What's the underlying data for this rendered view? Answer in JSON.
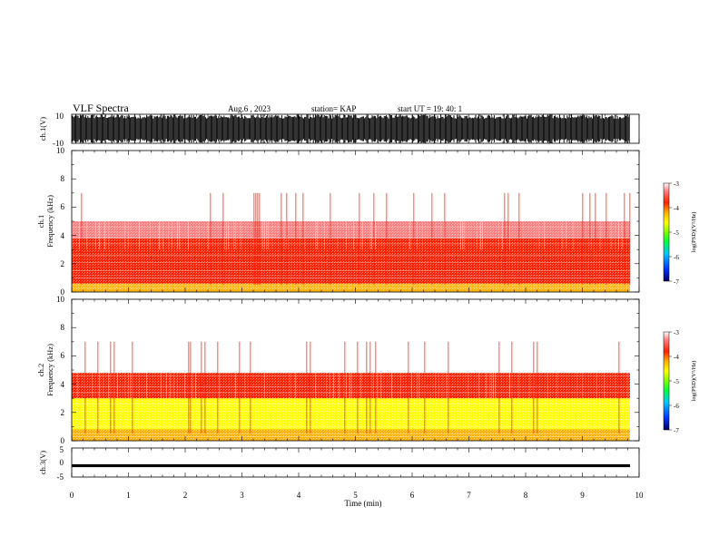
{
  "header": {
    "title": "VLF Spectra",
    "date": "Aug.6 , 2023",
    "station": "station= KAP",
    "start_ut": "start UT = 19: 40: 1"
  },
  "colors": {
    "background": "#ffffff",
    "trace": "#000000",
    "colorbar_stops": [
      "#000060",
      "#0030ff",
      "#00c8ff",
      "#00ff40",
      "#80ff00",
      "#ffff00",
      "#ffb000",
      "#ff2000",
      "#ff8080",
      "#ffffff"
    ]
  },
  "chart_data": [
    {
      "id": "ch1-waveform",
      "type": "line",
      "ylabel": "ch.1(V)",
      "ylim": [
        -10,
        10
      ],
      "yticks": [
        "10",
        "-10"
      ],
      "xlim": [
        0,
        10
      ],
      "description": "dense broadband waveform trace spanning most of the range"
    },
    {
      "id": "ch1-spectrogram",
      "type": "heatmap",
      "channel_label": "ch.1",
      "ylabel": "Frequency (kHz)",
      "ylim": [
        0,
        10
      ],
      "yticks": [
        "0",
        "2",
        "4",
        "6",
        "8",
        "10"
      ],
      "xlim": [
        0,
        10
      ],
      "colorbar": {
        "label": "log(PSD)(V²/Hz)",
        "range": [
          -7,
          -3
        ],
        "ticks": [
          "-3",
          "-4",
          "-5",
          "-6",
          "-7"
        ]
      },
      "bands": [
        {
          "from_khz": 0.0,
          "to_khz": 0.6,
          "level": -4.2
        },
        {
          "from_khz": 0.6,
          "to_khz": 1.2,
          "level": -4.0
        },
        {
          "from_khz": 1.2,
          "to_khz": 3.8,
          "level": -3.9
        },
        {
          "from_khz": 3.8,
          "to_khz": 5.0,
          "level": -3.6
        },
        {
          "from_khz": 5.0,
          "to_khz": 10.0,
          "level": -3.2
        }
      ]
    },
    {
      "id": "ch2-spectrogram",
      "type": "heatmap",
      "channel_label": "ch.2",
      "ylabel": "Frequency (kHz)",
      "ylim": [
        0,
        10
      ],
      "yticks": [
        "0",
        "2",
        "4",
        "6",
        "8",
        "10"
      ],
      "xlim": [
        0,
        10
      ],
      "colorbar": {
        "label": "log(PSD)(V²/Hz)",
        "range": [
          -7,
          -3
        ],
        "ticks": [
          "-3",
          "-4",
          "-5",
          "-6",
          "-7"
        ]
      },
      "bands": [
        {
          "from_khz": 0.0,
          "to_khz": 0.8,
          "level": -4.3
        },
        {
          "from_khz": 0.8,
          "to_khz": 3.0,
          "level": -4.9
        },
        {
          "from_khz": 3.0,
          "to_khz": 4.8,
          "level": -3.9
        },
        {
          "from_khz": 4.8,
          "to_khz": 10.0,
          "level": -3.2
        }
      ]
    },
    {
      "id": "ch3-waveform",
      "type": "line",
      "ylabel": "ch.3(V)",
      "ylim": [
        -5,
        5
      ],
      "yticks": [
        "5",
        "0",
        "-5"
      ],
      "xlim": [
        0,
        10
      ],
      "value_band": [
        -1.6,
        -0.6
      ]
    }
  ],
  "xaxis": {
    "label": "Time (min)",
    "ticks": [
      "0",
      "1",
      "2",
      "3",
      "4",
      "5",
      "6",
      "7",
      "8",
      "9",
      "10"
    ],
    "data_end_min": 9.84
  }
}
